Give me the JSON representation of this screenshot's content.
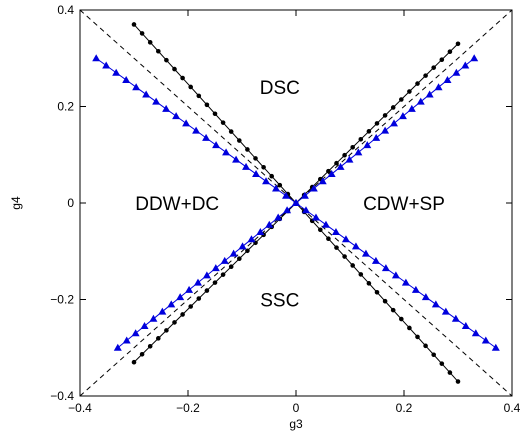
{
  "chart_data": {
    "type": "line",
    "xlabel": "g3",
    "ylabel": "g4",
    "xlim": [
      -0.4,
      0.4
    ],
    "ylim": [
      -0.4,
      0.4
    ],
    "xticks": [
      -0.4,
      -0.2,
      0,
      0.2,
      0.4
    ],
    "yticks": [
      -0.4,
      -0.2,
      0,
      0.2,
      0.4
    ],
    "xtick_labels": [
      "−0.4",
      "−0.2",
      "0",
      "0.2",
      "0.4"
    ],
    "ytick_labels": [
      "−0.4",
      "−0.2",
      "0",
      "0.2",
      "0.4"
    ],
    "grid": false,
    "colors": {
      "black_series": "#000000",
      "blue_series": "#0000dd",
      "dashed": "#000000"
    },
    "reference_lines": [
      {
        "style": "dashed",
        "x": [
          -0.4,
          0.4
        ],
        "y": [
          -0.4,
          0.4
        ]
      },
      {
        "style": "dashed",
        "x": [
          -0.4,
          0.4
        ],
        "y": [
          0.4,
          -0.4
        ]
      }
    ],
    "series": [
      {
        "marker": "circle",
        "color": "#000000",
        "x": [
          -0.3,
          -0.285,
          -0.27,
          -0.255,
          -0.24,
          -0.225,
          -0.21,
          -0.195,
          -0.18,
          -0.165,
          -0.15,
          -0.135,
          -0.12,
          -0.105,
          -0.09,
          -0.075,
          -0.06,
          -0.045,
          -0.03,
          -0.015,
          0.0
        ],
        "y": [
          -0.33,
          -0.3135,
          -0.297,
          -0.2805,
          -0.264,
          -0.2475,
          -0.231,
          -0.2145,
          -0.198,
          -0.1815,
          -0.165,
          -0.1485,
          -0.132,
          -0.1155,
          -0.099,
          -0.0825,
          -0.066,
          -0.0495,
          -0.033,
          -0.0165,
          0.0
        ]
      },
      {
        "marker": "circle",
        "color": "#000000",
        "x": [
          0.0,
          0.015,
          0.03,
          0.045,
          0.06,
          0.075,
          0.09,
          0.105,
          0.12,
          0.135,
          0.15,
          0.165,
          0.18,
          0.195,
          0.21,
          0.225,
          0.24,
          0.255,
          0.27,
          0.285,
          0.3
        ],
        "y": [
          0.0,
          0.0165,
          0.033,
          0.0495,
          0.066,
          0.0825,
          0.099,
          0.1155,
          0.132,
          0.1485,
          0.165,
          0.1815,
          0.198,
          0.2145,
          0.231,
          0.2475,
          0.264,
          0.2805,
          0.297,
          0.3135,
          0.33
        ]
      },
      {
        "marker": "circle",
        "color": "#000000",
        "x": [
          -0.3,
          -0.285,
          -0.27,
          -0.255,
          -0.24,
          -0.225,
          -0.21,
          -0.195,
          -0.18,
          -0.165,
          -0.15,
          -0.135,
          -0.12,
          -0.105,
          -0.09,
          -0.075,
          -0.06,
          -0.045,
          -0.03,
          -0.015,
          0.0
        ],
        "y": [
          0.37,
          0.3515,
          0.333,
          0.3145,
          0.296,
          0.2775,
          0.259,
          0.2405,
          0.222,
          0.2035,
          0.185,
          0.1665,
          0.148,
          0.1295,
          0.111,
          0.0925,
          0.074,
          0.0555,
          0.037,
          0.0185,
          0.0
        ]
      },
      {
        "marker": "circle",
        "color": "#000000",
        "x": [
          0.0,
          0.015,
          0.03,
          0.045,
          0.06,
          0.075,
          0.09,
          0.105,
          0.12,
          0.135,
          0.15,
          0.165,
          0.18,
          0.195,
          0.21,
          0.225,
          0.24,
          0.255,
          0.27,
          0.285,
          0.3
        ],
        "y": [
          0.0,
          -0.0185,
          -0.037,
          -0.0555,
          -0.074,
          -0.0925,
          -0.111,
          -0.1295,
          -0.148,
          -0.1665,
          -0.185,
          -0.2035,
          -0.222,
          -0.2405,
          -0.259,
          -0.2775,
          -0.296,
          -0.3145,
          -0.333,
          -0.3515,
          -0.37
        ]
      },
      {
        "marker": "triangle",
        "color": "#0000dd",
        "x": [
          -0.33,
          -0.3135,
          -0.297,
          -0.2805,
          -0.264,
          -0.2475,
          -0.231,
          -0.2145,
          -0.198,
          -0.1815,
          -0.165,
          -0.1485,
          -0.132,
          -0.1155,
          -0.099,
          -0.0825,
          -0.066,
          -0.0495,
          -0.033,
          -0.0165,
          0.0
        ],
        "y": [
          -0.3,
          -0.285,
          -0.27,
          -0.255,
          -0.24,
          -0.225,
          -0.21,
          -0.195,
          -0.18,
          -0.165,
          -0.15,
          -0.135,
          -0.12,
          -0.105,
          -0.09,
          -0.075,
          -0.06,
          -0.045,
          -0.03,
          -0.015,
          0.0
        ]
      },
      {
        "marker": "triangle",
        "color": "#0000dd",
        "x": [
          0.0,
          0.0165,
          0.033,
          0.0495,
          0.066,
          0.0825,
          0.099,
          0.1155,
          0.132,
          0.1485,
          0.165,
          0.1815,
          0.198,
          0.2145,
          0.231,
          0.2475,
          0.264,
          0.2805,
          0.297,
          0.3135,
          0.33
        ],
        "y": [
          0.0,
          0.015,
          0.03,
          0.045,
          0.06,
          0.075,
          0.09,
          0.105,
          0.12,
          0.135,
          0.15,
          0.165,
          0.18,
          0.195,
          0.21,
          0.225,
          0.24,
          0.255,
          0.27,
          0.285,
          0.3
        ]
      },
      {
        "marker": "triangle",
        "color": "#0000dd",
        "x": [
          -0.37,
          -0.3515,
          -0.333,
          -0.3145,
          -0.296,
          -0.2775,
          -0.259,
          -0.2405,
          -0.222,
          -0.2035,
          -0.185,
          -0.1665,
          -0.148,
          -0.1295,
          -0.111,
          -0.0925,
          -0.074,
          -0.0555,
          -0.037,
          -0.0185,
          0.0
        ],
        "y": [
          0.3,
          0.285,
          0.27,
          0.255,
          0.24,
          0.225,
          0.21,
          0.195,
          0.18,
          0.165,
          0.15,
          0.135,
          0.12,
          0.105,
          0.09,
          0.075,
          0.06,
          0.045,
          0.03,
          0.015,
          0.0
        ]
      },
      {
        "marker": "triangle",
        "color": "#0000dd",
        "x": [
          0.0,
          0.0185,
          0.037,
          0.0555,
          0.074,
          0.0925,
          0.111,
          0.1295,
          0.148,
          0.1665,
          0.185,
          0.2035,
          0.222,
          0.2405,
          0.259,
          0.2775,
          0.296,
          0.3145,
          0.333,
          0.3515,
          0.37
        ],
        "y": [
          0.0,
          -0.015,
          -0.03,
          -0.045,
          -0.06,
          -0.075,
          -0.09,
          -0.105,
          -0.12,
          -0.135,
          -0.15,
          -0.165,
          -0.18,
          -0.195,
          -0.21,
          -0.225,
          -0.24,
          -0.255,
          -0.27,
          -0.285,
          -0.3
        ]
      }
    ],
    "annotations": [
      {
        "text": "DSC",
        "x": -0.03,
        "y": 0.24
      },
      {
        "text": "DDW+DC",
        "x": -0.22,
        "y": 0.0
      },
      {
        "text": "CDW+SP",
        "x": 0.2,
        "y": 0.0
      },
      {
        "text": "SSC",
        "x": -0.03,
        "y": -0.2
      }
    ]
  }
}
